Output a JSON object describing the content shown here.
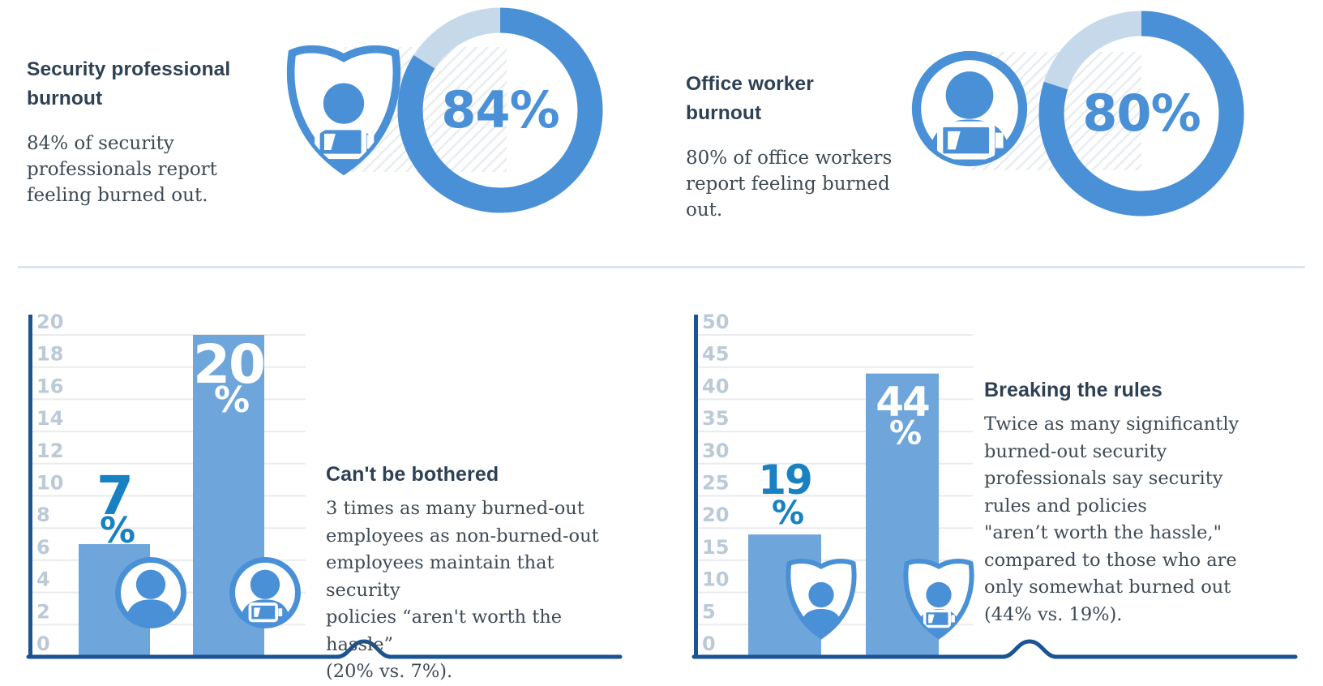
{
  "colors": {
    "primary_blue": "#4a90d6",
    "bar_blue": "#6ea6db",
    "pale_blue": "#c6d9ea",
    "accent_blue": "#1781c2",
    "axis_navy": "#1a5494",
    "tick_gray": "#bcc9d7",
    "grid_gray": "#e9ebee",
    "heading_dark": "#2e4154",
    "body_dark": "#3e4a55",
    "divider": "#dde4ea",
    "white": "#ffffff"
  },
  "top_left": {
    "heading": "Security professional\nburnout",
    "body": "84% of security\nprofessionals report\nfeeling burned out.",
    "donut_label": "84%",
    "icon": "shield-person-low-battery-icon"
  },
  "top_right": {
    "heading": "Office worker\nburnout",
    "body": "80% of office workers\nreport feeling burned out.",
    "donut_label": "80%",
    "icon": "person-circle-low-battery-icon"
  },
  "bottom_left": {
    "heading": "Can't be bothered",
    "body": "3 times as many burned-out\nemployees as non-burned-out\nemployees maintain that security\npolicies “aren't worth the hassle”\n(20% vs. 7%)."
  },
  "bottom_right": {
    "heading": "Breaking the rules",
    "body": "Twice as many significantly\nburned-out security\nprofessionals say security\nrules and policies\n\"aren’t worth the hassle,\"\ncompared to those who are\nonly somewhat burned out\n(44% vs. 19%)."
  },
  "chart_data": [
    {
      "type": "donut",
      "title": "Security professional burnout",
      "value": 84,
      "remainder": 16,
      "center_label": "84%",
      "start": "top",
      "direction": "clockwise"
    },
    {
      "type": "donut",
      "title": "Office worker burnout",
      "value": 80,
      "remainder": 20,
      "center_label": "80%",
      "start": "top",
      "direction": "clockwise"
    },
    {
      "type": "bar",
      "title": "Can't be bothered",
      "values": [
        7,
        20
      ],
      "bar_labels": [
        {
          "number": "7",
          "suffix": "%",
          "position": "above"
        },
        {
          "number": "20",
          "suffix": "%",
          "position": "inside"
        }
      ],
      "bar_icons": [
        "person-circle-icon",
        "person-circle-low-battery-icon"
      ],
      "ylim": [
        0,
        20
      ],
      "ystep": 2,
      "ytick_labels": [
        "0",
        "2",
        "4",
        "6",
        "8",
        "10",
        "12",
        "14",
        "16",
        "18",
        "20"
      ],
      "grid": true,
      "axis_break_marker": true
    },
    {
      "type": "bar",
      "title": "Breaking the rules",
      "values": [
        19,
        44
      ],
      "bar_labels": [
        {
          "number": "19",
          "suffix": "%",
          "position": "above"
        },
        {
          "number": "44",
          "suffix": "%",
          "position": "inside"
        }
      ],
      "bar_icons": [
        "shield-person-icon",
        "shield-person-low-battery-icon"
      ],
      "ylim": [
        0,
        50
      ],
      "ystep": 5,
      "ytick_labels": [
        "0",
        "5",
        "10",
        "15",
        "20",
        "25",
        "30",
        "35",
        "40",
        "45",
        "50"
      ],
      "grid": true,
      "axis_break_marker": true
    }
  ]
}
